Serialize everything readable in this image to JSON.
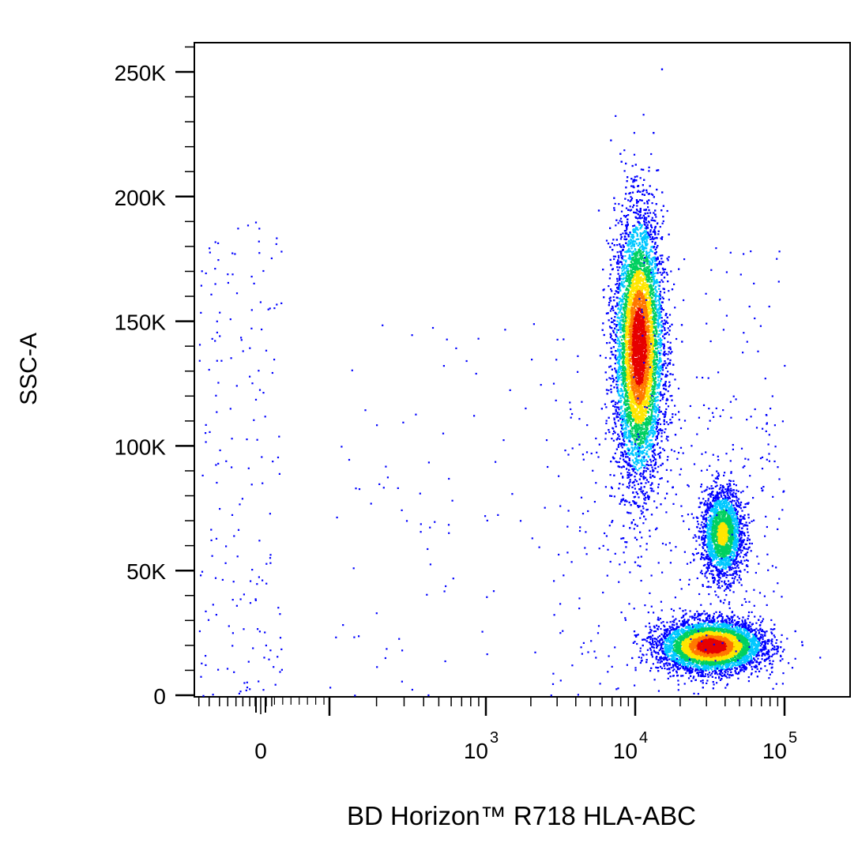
{
  "chart_data": {
    "type": "scatter",
    "style": "density-colored flow cytometry dot plot",
    "xlabel": "BD Horizon™ R718 HLA-ABC",
    "ylabel": "SSC-A",
    "x_scale": "biexponential",
    "x_ticks": [
      {
        "value": 0,
        "base": "0",
        "exp": ""
      },
      {
        "value": 1000,
        "base": "10",
        "exp": "3"
      },
      {
        "value": 10000,
        "base": "10",
        "exp": "4"
      },
      {
        "value": 100000,
        "base": "10",
        "exp": "5"
      }
    ],
    "y_scale": "linear",
    "ylim": [
      0,
      262144
    ],
    "y_ticks": [
      {
        "value": 0,
        "label": "0"
      },
      {
        "value": 50000,
        "label": "50K"
      },
      {
        "value": 100000,
        "label": "100K"
      },
      {
        "value": 150000,
        "label": "150K"
      },
      {
        "value": 200000,
        "label": "200K"
      },
      {
        "value": 250000,
        "label": "250K"
      }
    ],
    "grid": false,
    "colormap": [
      "#0000ff",
      "#00c8ff",
      "#00d060",
      "#ffe600",
      "#ff7800",
      "#e60000"
    ],
    "populations": [
      {
        "center_x": 10500,
        "center_y": 140000,
        "sd_log10_x": 0.08,
        "sd_y": 26000,
        "count": 9000
      },
      {
        "center_x": 38000,
        "center_y": 65000,
        "sd_log10_x": 0.07,
        "sd_y": 9000,
        "count": 2200
      },
      {
        "center_x": 32000,
        "center_y": 20000,
        "sd_log10_x": 0.17,
        "sd_y": 5000,
        "count": 6500
      }
    ],
    "background_events": 700
  }
}
